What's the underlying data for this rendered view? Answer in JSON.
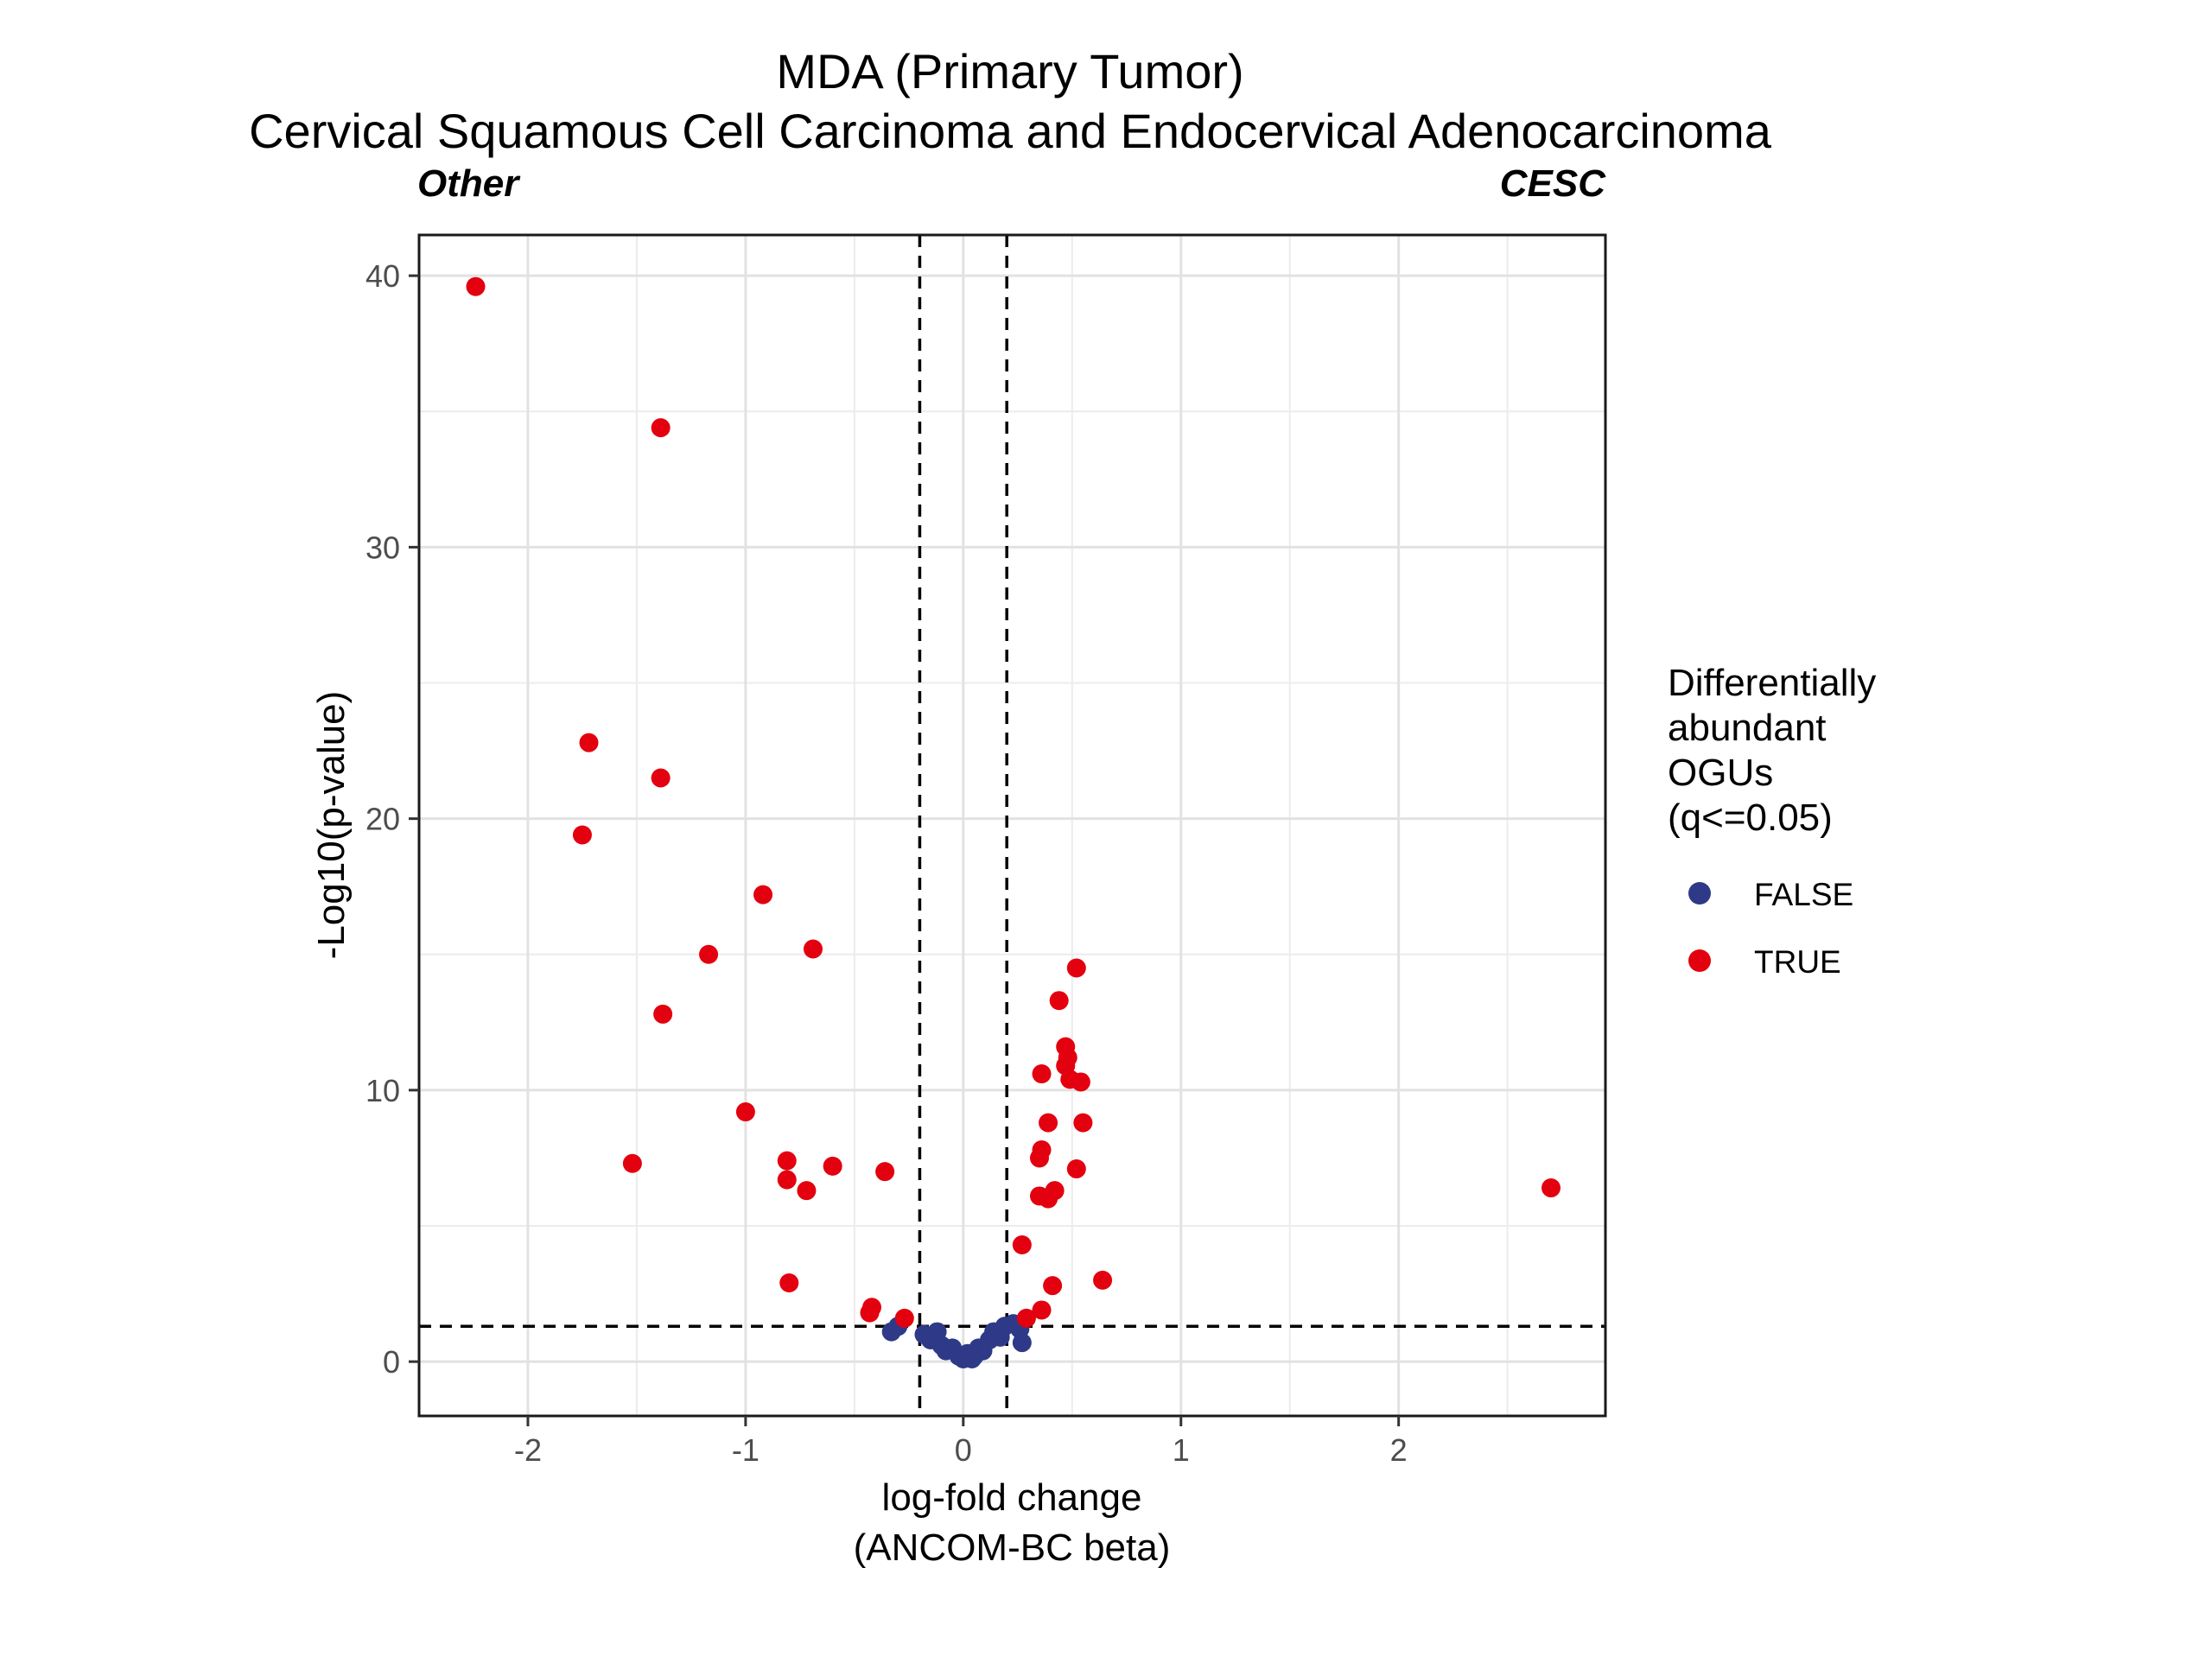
{
  "chart_data": {
    "type": "scatter",
    "title": "MDA (Primary Tumor)",
    "subtitle": "Cervical Squamous Cell Carcinoma and Endocervical Adenocarcinoma",
    "annotations": {
      "left": "Other",
      "right": "CESC"
    },
    "xlabel_line1": "log-fold change",
    "xlabel_line2": "(ANCOM-BC beta)",
    "ylabel": "-Log10(p-value)",
    "xlim": [
      -2.5,
      2.95
    ],
    "ylim": [
      -2.0,
      41.5
    ],
    "x_ticks": [
      -2,
      -1,
      0,
      1,
      2
    ],
    "x_tick_labels": [
      "-2",
      "-1",
      "0",
      "1",
      "2"
    ],
    "y_ticks": [
      0,
      10,
      20,
      30,
      40
    ],
    "y_tick_labels": [
      "0",
      "10",
      "20",
      "30",
      "40"
    ],
    "grid": true,
    "reference_lines": {
      "vertical": [
        -0.2,
        0.2
      ],
      "horizontal": [
        1.3
      ]
    },
    "legend": {
      "title": [
        "Differentially",
        "abundant",
        "OGUs",
        "(q<=0.05)"
      ],
      "placement": "right",
      "entries": [
        {
          "label": "FALSE",
          "color": "#2E3A87"
        },
        {
          "label": "TRUE",
          "color": "#E3000F"
        }
      ]
    },
    "series": [
      {
        "name": "TRUE",
        "color": "#E3000F",
        "points": [
          [
            -2.24,
            39.6
          ],
          [
            -1.39,
            34.4
          ],
          [
            -1.72,
            22.8
          ],
          [
            -1.39,
            21.5
          ],
          [
            -1.75,
            19.4
          ],
          [
            -0.92,
            17.2
          ],
          [
            -1.17,
            15.0
          ],
          [
            -0.69,
            15.2
          ],
          [
            -1.38,
            12.8
          ],
          [
            -1.0,
            9.2
          ],
          [
            -1.52,
            7.3
          ],
          [
            -0.81,
            7.4
          ],
          [
            -0.6,
            7.2
          ],
          [
            -0.36,
            7.0
          ],
          [
            -0.81,
            6.7
          ],
          [
            -0.72,
            6.3
          ],
          [
            -0.8,
            2.9
          ],
          [
            -0.42,
            2.0
          ],
          [
            -0.43,
            1.8
          ],
          [
            -0.27,
            1.6
          ],
          [
            0.52,
            14.5
          ],
          [
            0.44,
            13.3
          ],
          [
            0.47,
            11.6
          ],
          [
            0.48,
            11.2
          ],
          [
            0.47,
            10.9
          ],
          [
            0.36,
            10.6
          ],
          [
            0.49,
            10.4
          ],
          [
            0.54,
            10.3
          ],
          [
            0.39,
            8.8
          ],
          [
            0.55,
            8.8
          ],
          [
            0.36,
            7.8
          ],
          [
            0.35,
            7.5
          ],
          [
            0.52,
            7.1
          ],
          [
            0.42,
            6.3
          ],
          [
            0.35,
            6.1
          ],
          [
            0.39,
            6.0
          ],
          [
            2.7,
            6.4
          ],
          [
            0.27,
            4.3
          ],
          [
            0.64,
            3.0
          ],
          [
            0.41,
            2.8
          ],
          [
            0.36,
            1.9
          ],
          [
            0.29,
            1.6
          ]
        ]
      },
      {
        "name": "FALSE",
        "color": "#2E3A87",
        "points": [
          [
            -0.33,
            1.1
          ],
          [
            -0.3,
            1.3
          ],
          [
            -0.18,
            1.0
          ],
          [
            -0.12,
            1.1
          ],
          [
            -0.15,
            0.8
          ],
          [
            -0.1,
            0.6
          ],
          [
            -0.08,
            0.4
          ],
          [
            -0.05,
            0.5
          ],
          [
            -0.02,
            0.2
          ],
          [
            0.0,
            0.1
          ],
          [
            0.02,
            0.3
          ],
          [
            0.05,
            0.2
          ],
          [
            0.07,
            0.5
          ],
          [
            0.09,
            0.4
          ],
          [
            0.12,
            0.8
          ],
          [
            0.14,
            1.1
          ],
          [
            0.19,
            1.3
          ],
          [
            0.23,
            1.4
          ],
          [
            0.26,
            1.2
          ],
          [
            0.27,
            0.7
          ],
          [
            0.17,
            0.9
          ],
          [
            0.04,
            0.1
          ]
        ]
      }
    ]
  }
}
